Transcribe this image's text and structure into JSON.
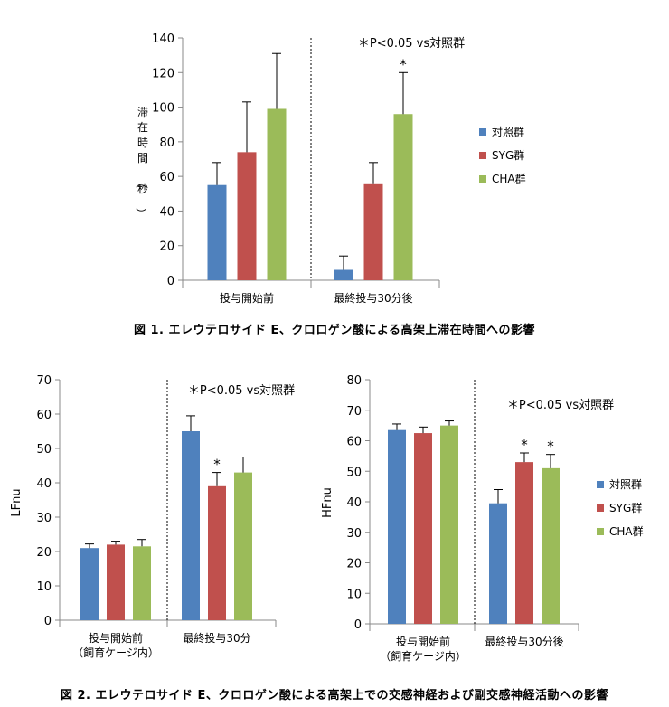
{
  "figure1_caption": "図 1. エレウテロサイド E、クロロゲン酸による高架上滞在時間への影響",
  "figure2_caption": "図 2. エレウテロサイド E、クロロゲン酸による高架上での交感神経および副交感神経活動への影響",
  "colors": {
    "control": "#4f81bd",
    "syg": "#c0504d",
    "cha": "#9bbb59"
  },
  "chart_data": [
    {
      "type": "bar",
      "title": "",
      "ylabel": "滞在時間（秒）",
      "xlabel": "",
      "ylim": [
        0,
        140
      ],
      "yticks": [
        0,
        20,
        40,
        60,
        80,
        100,
        120,
        140
      ],
      "categories": [
        "投与開始前",
        "最終投与30分後"
      ],
      "series": [
        {
          "name": "対照群",
          "values": [
            55,
            6
          ],
          "errors": [
            13,
            8
          ]
        },
        {
          "name": "SYG群",
          "values": [
            74,
            56
          ],
          "errors": [
            29,
            12
          ]
        },
        {
          "name": "CHA群",
          "values": [
            99,
            96
          ],
          "errors": [
            32,
            24
          ]
        }
      ],
      "significance": [
        null,
        [
          null,
          null,
          "*"
        ]
      ],
      "annotation": "＊P<0.05 vs対照群",
      "legend": "right"
    },
    {
      "type": "bar",
      "title": "",
      "ylabel": "LFnu",
      "xlabel": "",
      "ylim": [
        0,
        70
      ],
      "yticks": [
        0,
        10,
        20,
        30,
        40,
        50,
        60,
        70
      ],
      "categories": [
        "投与開始前\n（飼育ケージ内）",
        "最終投与30分"
      ],
      "series": [
        {
          "name": "対照群",
          "values": [
            21,
            55
          ],
          "errors": [
            1.2,
            4.5
          ]
        },
        {
          "name": "SYG群",
          "values": [
            22,
            39
          ],
          "errors": [
            1,
            4
          ]
        },
        {
          "name": "CHA群",
          "values": [
            21.5,
            43
          ],
          "errors": [
            2,
            4.5
          ]
        }
      ],
      "significance": [
        null,
        [
          null,
          "*",
          null
        ]
      ],
      "annotation": "＊P<0.05 vs対照群",
      "legend": "none"
    },
    {
      "type": "bar",
      "title": "",
      "ylabel": "HFnu",
      "xlabel": "",
      "ylim": [
        0,
        80
      ],
      "yticks": [
        0,
        10,
        20,
        30,
        40,
        50,
        60,
        70,
        80
      ],
      "categories": [
        "投与開始前\n（飼育ケージ内）",
        "最終投与30分後"
      ],
      "series": [
        {
          "name": "対照群",
          "values": [
            63.5,
            39.5
          ],
          "errors": [
            2,
            4.5
          ]
        },
        {
          "name": "SYG群",
          "values": [
            62.5,
            53
          ],
          "errors": [
            2,
            3
          ]
        },
        {
          "name": "CHA群",
          "values": [
            65,
            51
          ],
          "errors": [
            1.5,
            4.5
          ]
        }
      ],
      "significance": [
        null,
        [
          null,
          "*",
          "*"
        ]
      ],
      "annotation": "＊P<0.05 vs対照群",
      "legend": "right"
    }
  ]
}
